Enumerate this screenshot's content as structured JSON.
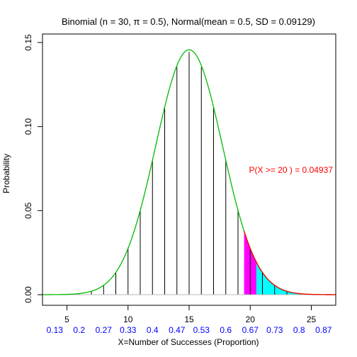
{
  "chart_data": {
    "type": "bar",
    "title": "Binomial (n = 30, π = 0.5), Normal(mean = 0.5,  SD = 0.09129)",
    "xlabel": "X=Number of Successes (Proportion)",
    "ylabel": "Probability",
    "xlim": [
      3,
      27
    ],
    "ylim": [
      0,
      0.15
    ],
    "x_ticks": [
      5,
      10,
      15,
      20,
      25
    ],
    "y_ticks": [
      "0.00",
      "0.05",
      "0.10",
      "0.15"
    ],
    "proportion_labels": [
      {
        "x": 4,
        "label": "0.13"
      },
      {
        "x": 6,
        "label": "0.2"
      },
      {
        "x": 8,
        "label": "0.27"
      },
      {
        "x": 10,
        "label": "0.33"
      },
      {
        "x": 12,
        "label": "0.4"
      },
      {
        "x": 14,
        "label": "0.47"
      },
      {
        "x": 16,
        "label": "0.53"
      },
      {
        "x": 18,
        "label": "0.6"
      },
      {
        "x": 20,
        "label": "0.67"
      },
      {
        "x": 22,
        "label": "0.73"
      },
      {
        "x": 24,
        "label": "0.8"
      },
      {
        "x": 26,
        "label": "0.87"
      }
    ],
    "binomial": {
      "n": 30,
      "p": 0.5,
      "x": [
        3,
        4,
        5,
        6,
        7,
        8,
        9,
        10,
        11,
        12,
        13,
        14,
        15,
        16,
        17,
        18,
        19,
        20,
        21,
        22,
        23,
        24,
        25,
        26,
        27
      ],
      "probabilities": [
        4.2e-06,
        2.55e-05,
        0.0001327,
        0.000553,
        0.0019063,
        0.0054652,
        0.0132727,
        0.0279816,
        0.0508756,
        0.080553,
        0.1115349,
        0.1354354,
        0.1444644,
        0.1354354,
        0.1115349,
        0.080553,
        0.0508756,
        0.0279816,
        0.0132727,
        0.0054652,
        0.0019063,
        0.000553,
        0.0001327,
        2.55e-05,
        4.2e-06
      ]
    },
    "normal": {
      "mean": 15,
      "sd": 2.7386
    },
    "shaded_region": {
      "from": 19.5,
      "to": 20.5,
      "color": "#ff00ff"
    },
    "tail_region": {
      "from": 20.5,
      "to": 27,
      "color": "#00ffff"
    },
    "annotation": {
      "text": "P(X >= 20 ) = 0.04937",
      "x": 19.9,
      "y": 0.0725
    },
    "colors": {
      "curve": "#00bb00",
      "tail_curve": "#ff0000",
      "spikes": "#000000",
      "prop_labels": "#0000ff",
      "annotation": "#ff0000"
    }
  }
}
